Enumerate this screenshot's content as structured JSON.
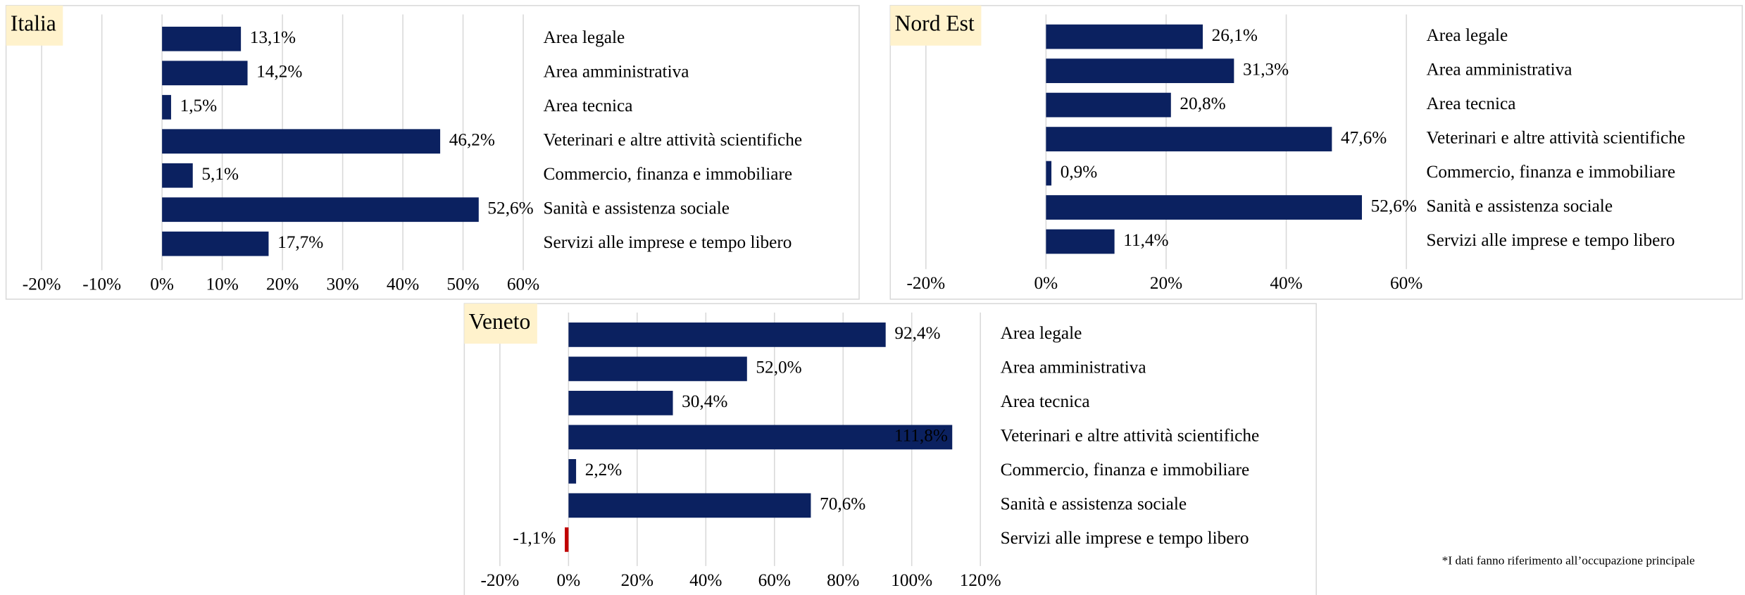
{
  "chart_data": [
    {
      "type": "barh",
      "title": "Italia",
      "categories": [
        "Area legale",
        "Area amministrativa",
        "Area tecnica",
        "Veterinari e altre attività scientifiche",
        "Commercio, finanza e immobiliare",
        "Sanità e assistenza sociale",
        "Servizi alle imprese e tempo libero"
      ],
      "values": [
        13.1,
        14.2,
        1.5,
        46.2,
        5.1,
        52.6,
        17.7
      ],
      "value_labels": [
        "13,1%",
        "14,2%",
        "1,5%",
        "46,2%",
        "5,1%",
        "52,6%",
        "17,7%"
      ],
      "color": "#0b2160",
      "negative_color": "#c00000",
      "xlim": [
        -20,
        60
      ],
      "xticks": [
        {
          "value": -20,
          "label": "-20%"
        },
        {
          "value": -10,
          "label": "-10%"
        },
        {
          "value": 0,
          "label": "0%"
        },
        {
          "value": 10,
          "label": "10%"
        },
        {
          "value": 20,
          "label": "20%"
        },
        {
          "value": 30,
          "label": "30%"
        },
        {
          "value": 40,
          "label": "40%"
        },
        {
          "value": 50,
          "label": "50%"
        },
        {
          "value": 60,
          "label": "60%"
        }
      ],
      "grid": true
    },
    {
      "type": "barh",
      "title": "Nord Est",
      "categories": [
        "Area legale",
        "Area amministrativa",
        "Area tecnica",
        "Veterinari e altre attività scientifiche",
        "Commercio, finanza e immobiliare",
        "Sanità e assistenza sociale",
        "Servizi alle imprese e tempo libero"
      ],
      "values": [
        26.1,
        31.3,
        20.8,
        47.6,
        0.9,
        52.6,
        11.4
      ],
      "value_labels": [
        "26,1%",
        "31,3%",
        "20,8%",
        "47,6%",
        "0,9%",
        "52,6%",
        "11,4%"
      ],
      "color": "#0b2160",
      "negative_color": "#c00000",
      "xlim": [
        -20,
        60
      ],
      "xticks": [
        {
          "value": -20,
          "label": "-20%"
        },
        {
          "value": 0,
          "label": "0%"
        },
        {
          "value": 20,
          "label": "20%"
        },
        {
          "value": 40,
          "label": "40%"
        },
        {
          "value": 60,
          "label": "60%"
        }
      ],
      "grid": true
    },
    {
      "type": "barh",
      "title": "Veneto",
      "categories": [
        "Area legale",
        "Area amministrativa",
        "Area tecnica",
        "Veterinari e altre attività scientifiche",
        "Commercio, finanza e immobiliare",
        "Sanità e assistenza sociale",
        "Servizi alle imprese e tempo libero"
      ],
      "values": [
        92.4,
        52.0,
        30.4,
        111.8,
        2.2,
        70.6,
        -1.1
      ],
      "value_labels": [
        "92,4%",
        "52,0%",
        "30,4%",
        "111,8%",
        "2,2%",
        "70,6%",
        "-1,1%"
      ],
      "color": "#0b2160",
      "negative_color": "#c00000",
      "xlim": [
        -20,
        120
      ],
      "xticks": [
        {
          "value": -20,
          "label": "-20%"
        },
        {
          "value": 0,
          "label": "0%"
        },
        {
          "value": 20,
          "label": "20%"
        },
        {
          "value": 40,
          "label": "40%"
        },
        {
          "value": 60,
          "label": "60%"
        },
        {
          "value": 80,
          "label": "80%"
        },
        {
          "value": 100,
          "label": "100%"
        },
        {
          "value": 120,
          "label": "120%"
        }
      ],
      "grid": true
    }
  ],
  "footnote": "*I dati fanno riferimento all’occupazione principale"
}
